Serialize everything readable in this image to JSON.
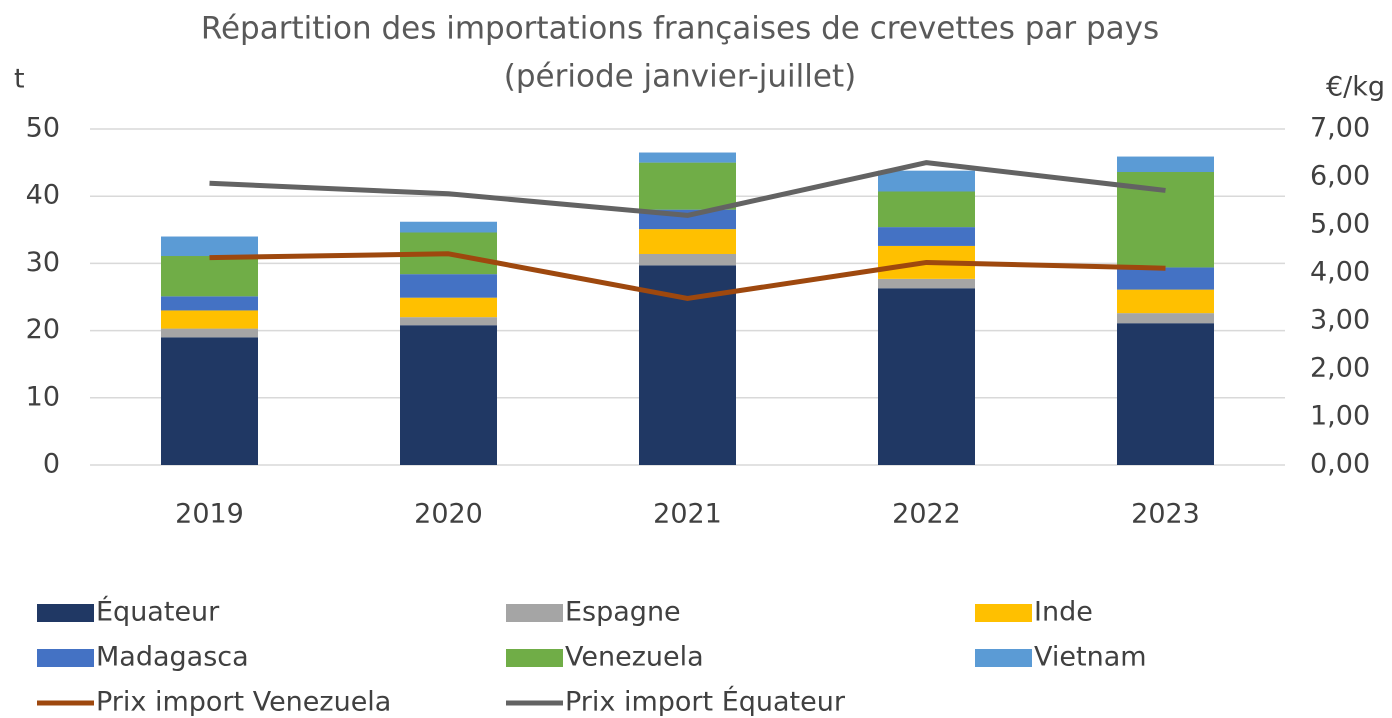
{
  "chart_data": {
    "type": "bar",
    "stacked": true,
    "title": "Répartition des importations françaises de crevettes par pays",
    "subtitle": "(période janvier-juillet)",
    "y_label": "t",
    "y2_label": "€/kg",
    "categories": [
      "2019",
      "2020",
      "2021",
      "2022",
      "2023"
    ],
    "series": [
      {
        "name": "Équateur",
        "color": "#203864",
        "values": [
          19.0,
          20.8,
          29.7,
          26.3,
          21.1
        ]
      },
      {
        "name": "Espagne",
        "color": "#a5a5a5",
        "values": [
          1.3,
          1.2,
          1.7,
          1.4,
          1.5
        ]
      },
      {
        "name": "Inde",
        "color": "#ffc000",
        "values": [
          2.7,
          2.9,
          3.7,
          4.9,
          3.5
        ]
      },
      {
        "name": "Madagasca",
        "color": "#4472c4",
        "values": [
          2.1,
          3.5,
          2.9,
          2.8,
          3.3
        ]
      },
      {
        "name": "Venezuela",
        "color": "#70ad47",
        "values": [
          6.0,
          6.2,
          7.0,
          5.3,
          14.2
        ]
      },
      {
        "name": "Vietnam",
        "color": "#5b9bd5",
        "values": [
          2.9,
          1.6,
          1.5,
          3.1,
          2.3
        ]
      },
      {
        "name": "Prix import Venezuela",
        "type": "line",
        "axis": "y2",
        "color": "#9e480e",
        "values": [
          4.32,
          4.4,
          3.47,
          4.22,
          4.1
        ]
      },
      {
        "name": "Prix import Équateur",
        "type": "line",
        "axis": "y2",
        "color": "#636363",
        "values": [
          5.87,
          5.65,
          5.2,
          6.3,
          5.72
        ]
      }
    ],
    "ylim": [
      0,
      50
    ],
    "yticks": [
      0,
      10,
      20,
      30,
      40,
      50
    ],
    "y2lim": [
      0,
      7
    ],
    "y2ticks": [
      {
        "value": 0,
        "label": "0,00"
      },
      {
        "value": 1,
        "label": "1,00"
      },
      {
        "value": 2,
        "label": "2,00"
      },
      {
        "value": 3,
        "label": "3,00"
      },
      {
        "value": 4,
        "label": "4,00"
      },
      {
        "value": 5,
        "label": "5,00"
      },
      {
        "value": 6,
        "label": "6,00"
      },
      {
        "value": 7,
        "label": "7,00"
      }
    ],
    "grid": true,
    "legend": "bottom"
  }
}
